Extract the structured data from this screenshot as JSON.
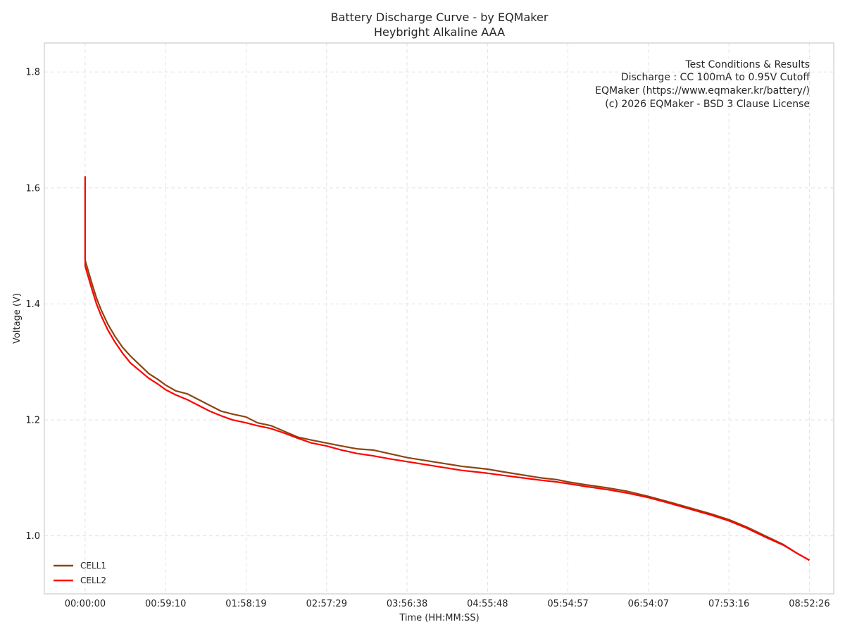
{
  "chart_data": {
    "type": "line",
    "title": "Battery Discharge Curve - by EQMaker",
    "subtitle": "Heybright Alkaline AAA",
    "xlabel": "Time (HH:MM:SS)",
    "ylabel": "Voltage (V)",
    "x_unit": "seconds",
    "xlim": [
      -1800,
      33020
    ],
    "ylim": [
      0.9,
      1.85
    ],
    "x_ticks": [
      {
        "value": 0,
        "label": "00:00:00"
      },
      {
        "value": 3550,
        "label": "00:59:10"
      },
      {
        "value": 7099,
        "label": "01:58:19"
      },
      {
        "value": 10649,
        "label": "02:57:29"
      },
      {
        "value": 14198,
        "label": "03:56:38"
      },
      {
        "value": 17748,
        "label": "04:55:48"
      },
      {
        "value": 21297,
        "label": "05:54:57"
      },
      {
        "value": 24847,
        "label": "06:54:07"
      },
      {
        "value": 28396,
        "label": "07:53:16"
      },
      {
        "value": 31946,
        "label": "08:52:26"
      }
    ],
    "y_ticks": [
      {
        "value": 1.0,
        "label": "1.0"
      },
      {
        "value": 1.2,
        "label": "1.2"
      },
      {
        "value": 1.4,
        "label": "1.4"
      },
      {
        "value": 1.6,
        "label": "1.6"
      },
      {
        "value": 1.8,
        "label": "1.8"
      }
    ],
    "grid": true,
    "legend_position": "lower-left",
    "series": [
      {
        "name": "CELL1",
        "color": "#8B4513",
        "x": [
          0,
          0,
          150,
          300,
          500,
          700,
          1000,
          1300,
          1650,
          2000,
          2400,
          2800,
          3200,
          3550,
          4000,
          4500,
          5000,
          5500,
          6000,
          6500,
          7099,
          7600,
          8200,
          8800,
          9400,
          10000,
          10649,
          11300,
          12000,
          12700,
          13400,
          14198,
          15000,
          15800,
          16600,
          17300,
          17748,
          18500,
          19300,
          20100,
          20800,
          21297,
          22100,
          23000,
          23900,
          24847,
          25800,
          26700,
          27600,
          28396,
          29200,
          30000,
          30800,
          31400,
          31946
        ],
        "values": [
          1.62,
          1.475,
          1.455,
          1.435,
          1.41,
          1.39,
          1.365,
          1.345,
          1.325,
          1.31,
          1.295,
          1.28,
          1.27,
          1.26,
          1.25,
          1.245,
          1.235,
          1.225,
          1.215,
          1.21,
          1.205,
          1.195,
          1.19,
          1.18,
          1.17,
          1.165,
          1.16,
          1.155,
          1.15,
          1.148,
          1.142,
          1.135,
          1.13,
          1.125,
          1.12,
          1.117,
          1.115,
          1.11,
          1.105,
          1.1,
          1.097,
          1.093,
          1.088,
          1.083,
          1.077,
          1.068,
          1.058,
          1.048,
          1.038,
          1.028,
          1.015,
          1.0,
          0.985,
          0.97,
          0.958
        ]
      },
      {
        "name": "CELL2",
        "color": "#FF0000",
        "x": [
          0,
          0,
          150,
          300,
          500,
          700,
          1000,
          1300,
          1650,
          2000,
          2400,
          2800,
          3200,
          3550,
          4000,
          4500,
          5000,
          5500,
          6000,
          6500,
          7099,
          7600,
          8200,
          8800,
          9400,
          10000,
          10649,
          11300,
          12000,
          12700,
          13400,
          14198,
          15000,
          15800,
          16600,
          17300,
          17748,
          18500,
          19300,
          20100,
          20800,
          21297,
          22100,
          23000,
          23900,
          24847,
          25800,
          26700,
          27600,
          28396,
          29200,
          30000,
          30800,
          31400,
          31946
        ],
        "values": [
          1.62,
          1.465,
          1.445,
          1.425,
          1.4,
          1.38,
          1.355,
          1.335,
          1.315,
          1.298,
          1.285,
          1.272,
          1.262,
          1.252,
          1.243,
          1.235,
          1.225,
          1.215,
          1.207,
          1.2,
          1.195,
          1.19,
          1.185,
          1.177,
          1.168,
          1.16,
          1.155,
          1.148,
          1.142,
          1.138,
          1.133,
          1.128,
          1.123,
          1.118,
          1.113,
          1.11,
          1.108,
          1.104,
          1.1,
          1.096,
          1.093,
          1.09,
          1.085,
          1.08,
          1.074,
          1.066,
          1.056,
          1.046,
          1.036,
          1.026,
          1.013,
          0.998,
          0.984,
          0.97,
          0.958
        ]
      }
    ],
    "annotation_lines": [
      "Test Conditions & Results",
      "Discharge : CC 100mA to 0.95V Cutoff",
      "EQMaker (https://www.eqmaker.kr/battery/)",
      "(c) 2026 EQMaker - BSD 3 Clause License"
    ]
  }
}
